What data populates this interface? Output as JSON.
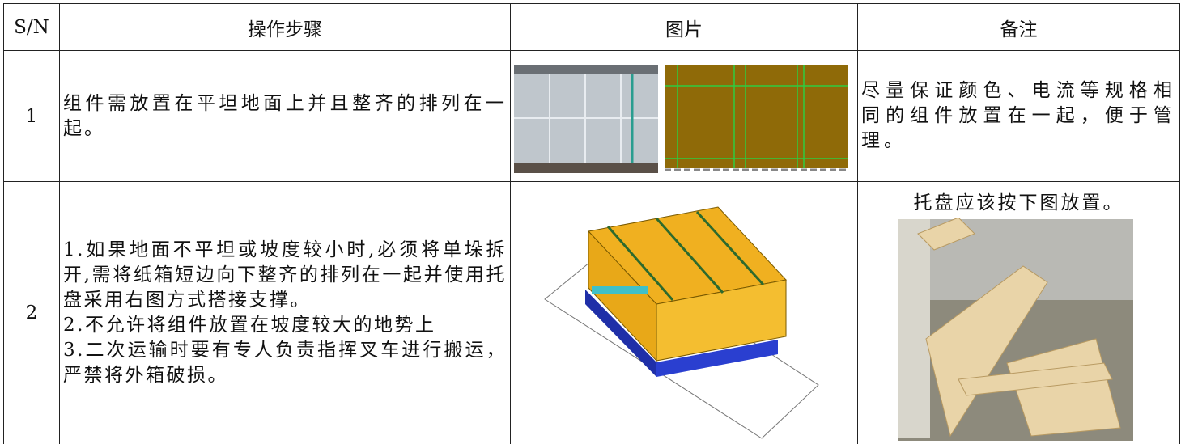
{
  "header": {
    "sn": "S/N",
    "step": "操作步骤",
    "image": "图片",
    "note": "备注"
  },
  "rows": [
    {
      "sn": "1",
      "step": [
        "组件需放置在平坦地面上并且整齐的排列在一起。"
      ],
      "note": "尽量保证颜色、电流等规格相同的组件放置在一起，便于管理。"
    },
    {
      "sn": "2",
      "step": [
        "1.如果地面不平坦或坡度较小时,必须将单垛拆开,需将纸箱短边向下整齐的排列在一起并使用托盘采用右图方式搭接支撑。",
        "2.不允许将组件放置在坡度较大的地势上",
        "3.二次运输时要有专人负责指挥叉车进行搬运，严禁将外箱破损。"
      ],
      "note": "托盘应该按下图放置。"
    }
  ]
}
